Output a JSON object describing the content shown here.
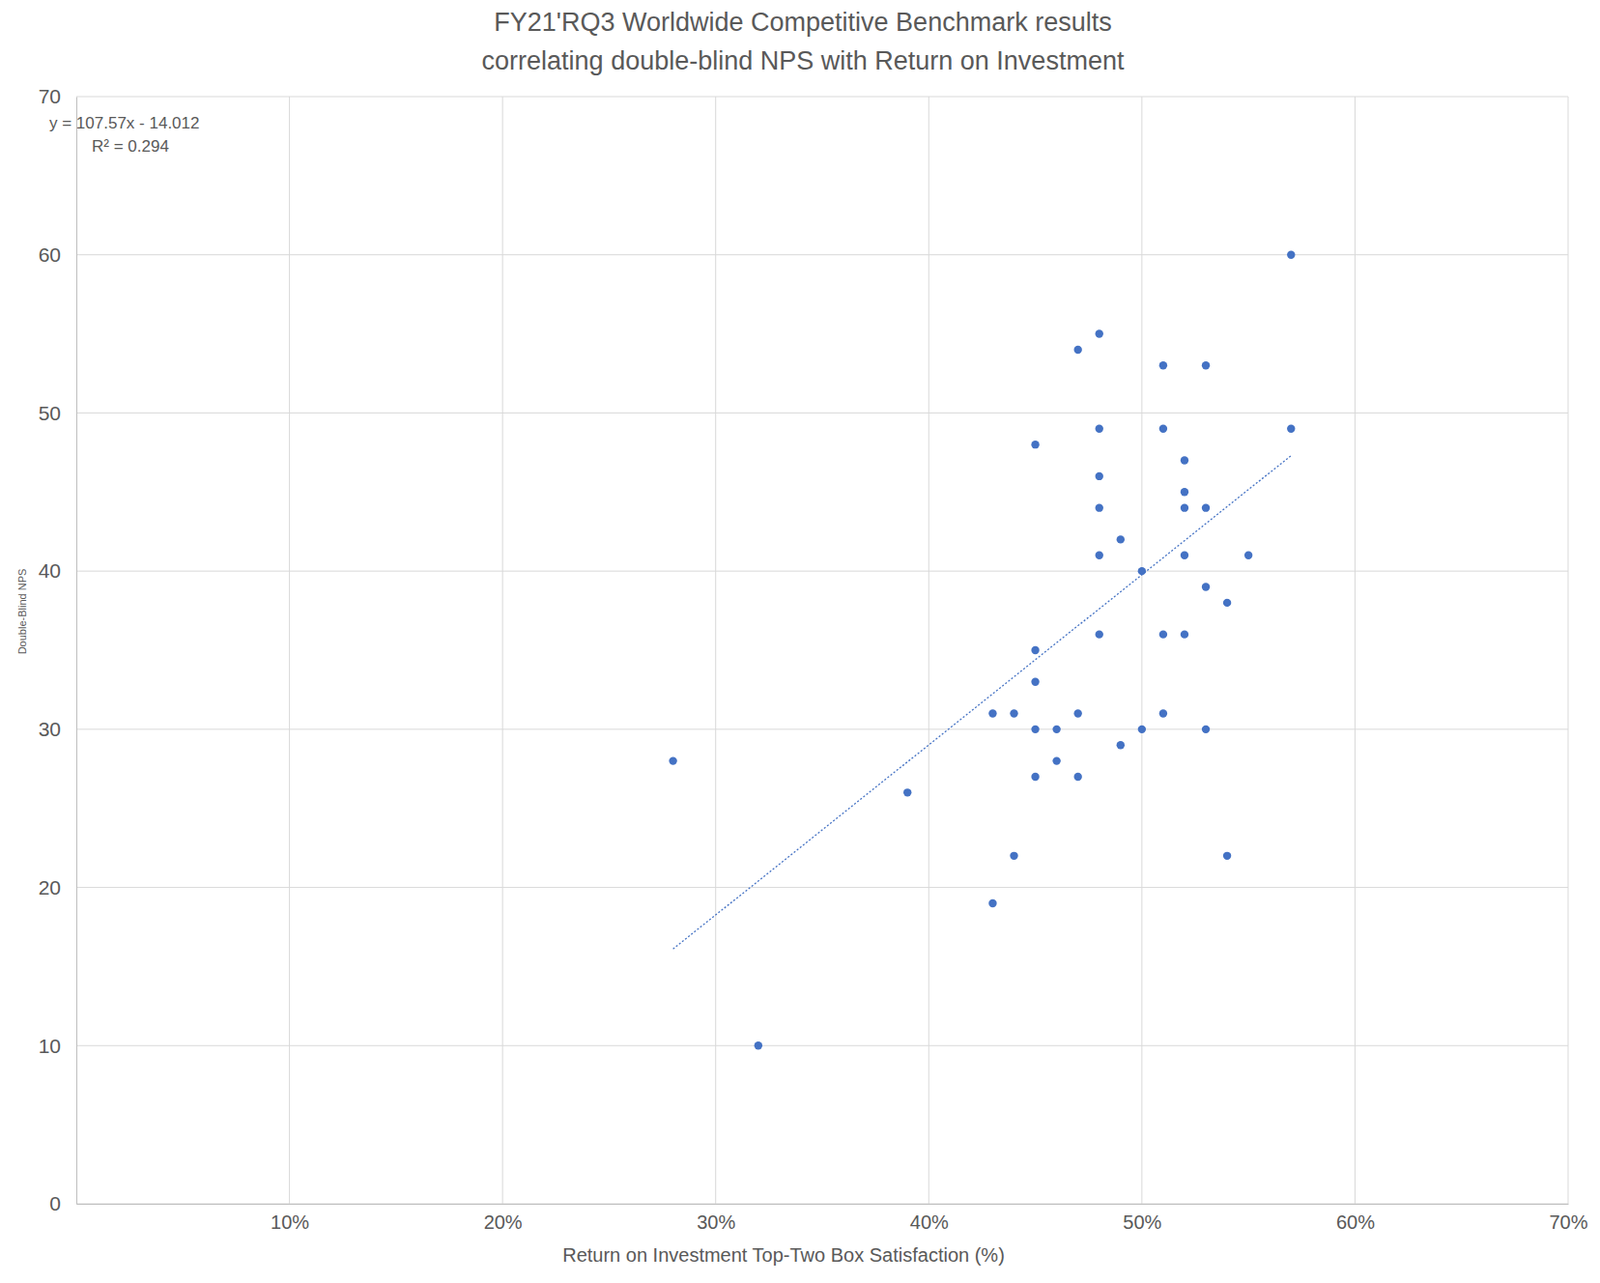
{
  "chart_data": {
    "type": "scatter",
    "title": [
      "FY21'RQ3 Worldwide Competitive Benchmark results",
      "correlating double-blind NPS with Return on Investment"
    ],
    "x_label": "Return on Investment Top-Two Box Satisfaction (%)",
    "y_label": "Double-Blind NPS",
    "x": [
      0.28,
      0.32,
      0.39,
      0.43,
      0.43,
      0.44,
      0.44,
      0.45,
      0.45,
      0.45,
      0.45,
      0.45,
      0.46,
      0.46,
      0.47,
      0.47,
      0.47,
      0.48,
      0.48,
      0.48,
      0.48,
      0.48,
      0.48,
      0.49,
      0.49,
      0.5,
      0.5,
      0.51,
      0.51,
      0.51,
      0.51,
      0.52,
      0.52,
      0.52,
      0.52,
      0.52,
      0.53,
      0.53,
      0.53,
      0.53,
      0.54,
      0.54,
      0.55,
      0.57,
      0.57
    ],
    "values": [
      28,
      10,
      26,
      31,
      19,
      31,
      22,
      48,
      35,
      33,
      30,
      27,
      30,
      28,
      54,
      31,
      27,
      55,
      49,
      46,
      44,
      41,
      36,
      42,
      29,
      40,
      30,
      53,
      49,
      36,
      31,
      47,
      45,
      44,
      41,
      36,
      53,
      44,
      39,
      30,
      38,
      22,
      41,
      60,
      49
    ],
    "color": "#4472c4",
    "marker": "circle",
    "xlim": [
      0,
      0.7
    ],
    "ylim": [
      0,
      70
    ],
    "xticks": [
      {
        "value": 0.1,
        "label": "10%"
      },
      {
        "value": 0.2,
        "label": "20%"
      },
      {
        "value": 0.3,
        "label": "30%"
      },
      {
        "value": 0.4,
        "label": "40%"
      },
      {
        "value": 0.5,
        "label": "50%"
      },
      {
        "value": 0.6,
        "label": "60%"
      },
      {
        "value": 0.7,
        "label": "70%"
      }
    ],
    "yticks": [
      0,
      10,
      20,
      30,
      40,
      50,
      60,
      70
    ],
    "grid": true,
    "trendline": {
      "equation": "y = 107.57x - 14.012",
      "r_squared": "R² = 0.294",
      "slope": 107.57,
      "intercept": -14.012,
      "x_start": 0.28,
      "x_end": 0.57,
      "line_style": "dotted"
    }
  }
}
